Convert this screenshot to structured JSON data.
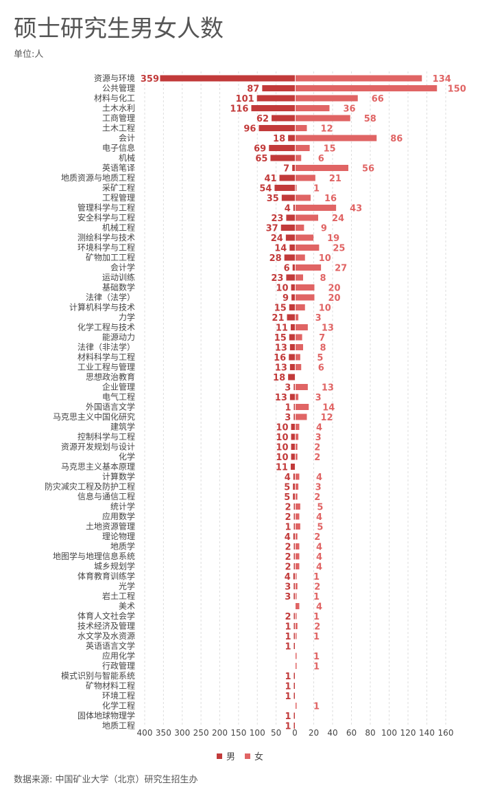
{
  "title": "硕士研究生男女人数",
  "unit": "单位:人",
  "source": "数据来源: 中国矿业大学（北京）研究生招生办",
  "colors": {
    "male": "#c23a3a",
    "female": "#e06464",
    "grid": "#dddddd"
  },
  "chart_data": {
    "type": "bar",
    "orientation": "horizontal-butterfly",
    "legend_position": "bottom",
    "grid": true,
    "left_axis": {
      "ticks": [
        400,
        350,
        300,
        250,
        200,
        150,
        100,
        50,
        0
      ],
      "range": [
        0,
        400
      ]
    },
    "right_axis": {
      "ticks": [
        0,
        20,
        40,
        60,
        80,
        100,
        120,
        140,
        160
      ],
      "range": [
        0,
        160
      ]
    },
    "categories": [
      "资源与环境",
      "公共管理",
      "材料与化工",
      "土木水利",
      "工商管理",
      "土木工程",
      "会计",
      "电子信息",
      "机械",
      "英语笔译",
      "地质资源与地质工程",
      "采矿工程",
      "工程管理",
      "管理科学与工程",
      "安全科学与工程",
      "机械工程",
      "测绘科学与技术",
      "环境科学与工程",
      "矿物加工工程",
      "会计学",
      "运动训练",
      "基础数学",
      "法律（法学）",
      "计算机科学与技术",
      "力学",
      "化学工程与技术",
      "能源动力",
      "法律（非法学）",
      "材料科学与工程",
      "工业工程与管理",
      "思想政治教育",
      "企业管理",
      "电气工程",
      "外国语言文学",
      "马克思主义中国化研究",
      "建筑学",
      "控制科学与工程",
      "资源开发规划与设计",
      "化学",
      "马克思主义基本原理",
      "计算数学",
      "防灾减灾工程及防护工程",
      "信息与通信工程",
      "统计学",
      "应用数学",
      "土地资源管理",
      "理论物理",
      "地质学",
      "地图学与地理信息系统",
      "城乡规划学",
      "体育教育训练学",
      "光学",
      "岩土工程",
      "美术",
      "体育人文社会学",
      "技术经济及管理",
      "水文学及水资源",
      "英语语言文学",
      "应用化学",
      "行政管理",
      "模式识别与智能系统",
      "矿物材料工程",
      "环境工程",
      "化学工程",
      "固体地球物理学",
      "地质工程"
    ],
    "series": [
      {
        "name": "男",
        "values": [
          359,
          87,
          101,
          116,
          62,
          96,
          18,
          69,
          65,
          7,
          41,
          54,
          35,
          4,
          23,
          37,
          24,
          14,
          28,
          6,
          23,
          10,
          9,
          15,
          21,
          11,
          15,
          13,
          16,
          13,
          18,
          3,
          13,
          1,
          3,
          10,
          10,
          10,
          10,
          11,
          4,
          5,
          5,
          2,
          2,
          1,
          4,
          2,
          2,
          2,
          4,
          3,
          3,
          null,
          2,
          1,
          1,
          1,
          null,
          null,
          1,
          1,
          1,
          null,
          1,
          1
        ]
      },
      {
        "name": "女",
        "values": [
          134,
          150,
          66,
          36,
          58,
          12,
          86,
          15,
          6,
          56,
          21,
          1,
          16,
          43,
          24,
          9,
          19,
          25,
          10,
          27,
          8,
          20,
          20,
          10,
          3,
          13,
          7,
          8,
          5,
          6,
          null,
          13,
          3,
          14,
          12,
          4,
          3,
          2,
          2,
          null,
          4,
          3,
          2,
          5,
          4,
          5,
          2,
          4,
          4,
          4,
          1,
          2,
          1,
          4,
          1,
          2,
          1,
          null,
          1,
          1,
          null,
          null,
          null,
          1,
          null,
          null
        ]
      }
    ]
  }
}
